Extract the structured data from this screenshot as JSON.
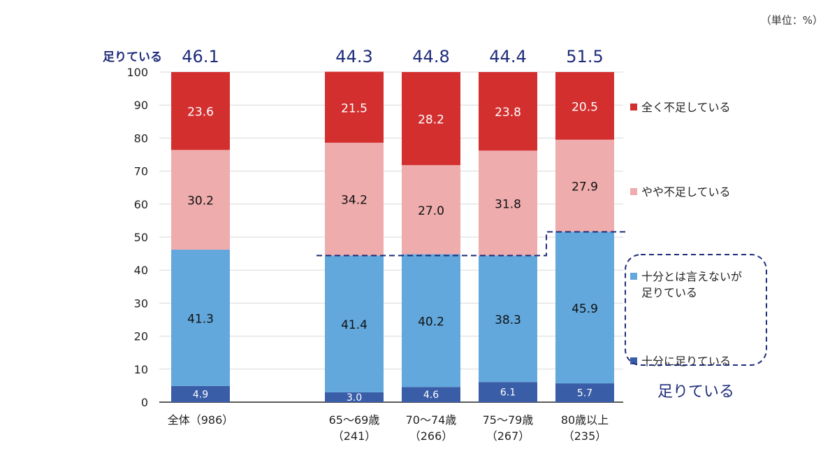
{
  "unit_note": "（単位：%）",
  "sufficient_row_label": "足りている",
  "sufficient_group_label": "足りている",
  "colors": {
    "fully_sufficient": "#3a5da8",
    "somewhat_sufficient": "#62a8dc",
    "somewhat_insufficient": "#eeacad",
    "not_at_all": "#d32f2f",
    "accent_navy": "#1f2c7a"
  },
  "chart_data": {
    "type": "bar",
    "stacked": true,
    "ylim": [
      0,
      100
    ],
    "yticks": [
      0,
      10,
      20,
      30,
      40,
      50,
      60,
      70,
      80,
      90,
      100
    ],
    "grid": true,
    "legend_position": "right",
    "categories": [
      {
        "line1": "全体（986）",
        "line2": ""
      },
      {
        "line1": "65～69歳",
        "line2": "（241）"
      },
      {
        "line1": "70～74歳",
        "line2": "（266）"
      },
      {
        "line1": "75～79歳",
        "line2": "（267）"
      },
      {
        "line1": "80歳以上",
        "line2": "（235）"
      }
    ],
    "series": [
      {
        "key": "fully_sufficient",
        "name": "十分に足りている",
        "values": [
          "4.9",
          "3.0",
          "4.6",
          "6.1",
          "5.7"
        ]
      },
      {
        "key": "somewhat_sufficient",
        "name": "十分とは言えないが足りている",
        "name_lines": [
          "十分とは言えないが",
          "足りている"
        ],
        "values": [
          "41.3",
          "41.4",
          "40.2",
          "38.3",
          "45.9"
        ]
      },
      {
        "key": "somewhat_insufficient",
        "name": "やや不足している",
        "values": [
          "30.2",
          "34.2",
          "27.0",
          "31.8",
          "27.9"
        ]
      },
      {
        "key": "not_at_all",
        "name": "全く不足している",
        "values": [
          "23.6",
          "21.5",
          "28.2",
          "23.8",
          "20.5"
        ]
      }
    ],
    "sufficient_totals": [
      "46.1",
      "44.3",
      "44.8",
      "44.4",
      "51.5"
    ]
  }
}
